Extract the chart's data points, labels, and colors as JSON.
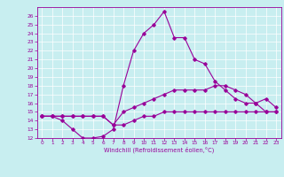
{
  "xlabel": "Windchill (Refroidissement éolien,°C)",
  "xlim": [
    -0.5,
    23.5
  ],
  "ylim": [
    12,
    27
  ],
  "yticks": [
    12,
    13,
    14,
    15,
    16,
    17,
    18,
    19,
    20,
    21,
    22,
    23,
    24,
    25,
    26
  ],
  "xticks": [
    0,
    1,
    2,
    3,
    4,
    5,
    6,
    7,
    8,
    9,
    10,
    11,
    12,
    13,
    14,
    15,
    16,
    17,
    18,
    19,
    20,
    21,
    22,
    23
  ],
  "bg_color": "#c8eef0",
  "line_color": "#990099",
  "line1_x": [
    0,
    1,
    2,
    3,
    4,
    5,
    6,
    7,
    8,
    9,
    10,
    11,
    12,
    13,
    14,
    15,
    16,
    17,
    18,
    19,
    20,
    21,
    22,
    23
  ],
  "line1_y": [
    14.5,
    14.5,
    14.0,
    13.0,
    12.0,
    12.0,
    12.2,
    13.0,
    18.0,
    22.0,
    24.0,
    25.0,
    26.5,
    23.5,
    23.5,
    21.0,
    20.5,
    18.5,
    17.5,
    16.5,
    16.0,
    16.0,
    15.0,
    15.0
  ],
  "line2_x": [
    0,
    1,
    2,
    3,
    4,
    5,
    6,
    7,
    8,
    9,
    10,
    11,
    12,
    13,
    14,
    15,
    16,
    17,
    18,
    19,
    20,
    21,
    22,
    23
  ],
  "line2_y": [
    14.5,
    14.5,
    14.5,
    14.5,
    14.5,
    14.5,
    14.5,
    13.5,
    15.0,
    15.5,
    16.0,
    16.5,
    17.0,
    17.5,
    17.5,
    17.5,
    17.5,
    18.0,
    18.0,
    17.5,
    17.0,
    16.0,
    16.5,
    15.5
  ],
  "line3_x": [
    0,
    1,
    2,
    3,
    4,
    5,
    6,
    7,
    8,
    9,
    10,
    11,
    12,
    13,
    14,
    15,
    16,
    17,
    18,
    19,
    20,
    21,
    22,
    23
  ],
  "line3_y": [
    14.5,
    14.5,
    14.5,
    14.5,
    14.5,
    14.5,
    14.5,
    13.5,
    13.5,
    14.0,
    14.5,
    14.5,
    15.0,
    15.0,
    15.0,
    15.0,
    15.0,
    15.0,
    15.0,
    15.0,
    15.0,
    15.0,
    15.0,
    15.0
  ]
}
